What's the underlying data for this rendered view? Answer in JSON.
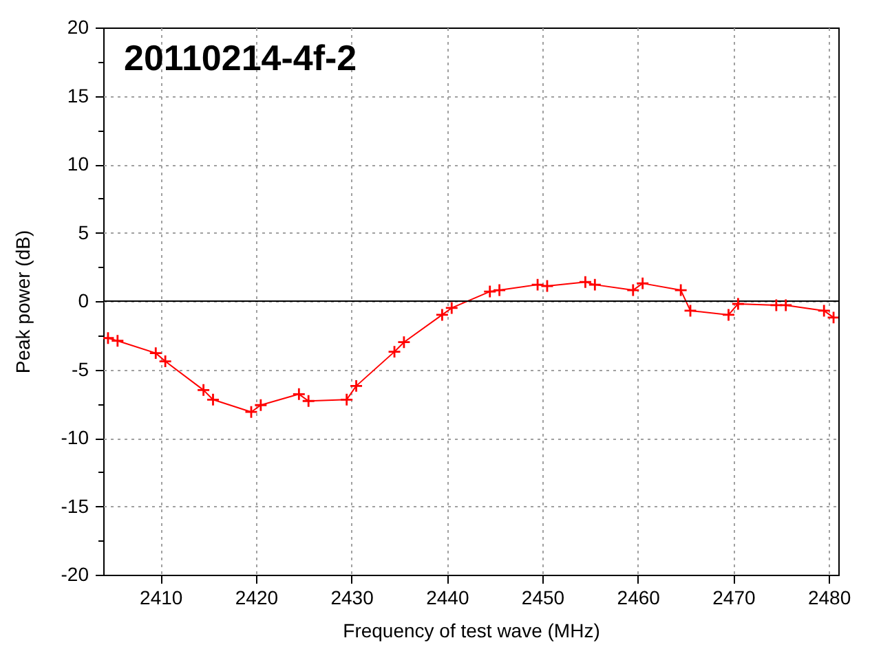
{
  "chart_data": {
    "type": "line",
    "title": "20110214-4f-2",
    "xlabel": "Frequency of test wave (MHz)",
    "ylabel": "Peak power (dB)",
    "x": [
      2404.5,
      2405.5,
      2409.5,
      2410.5,
      2414.5,
      2415.5,
      2419.5,
      2420.5,
      2424.5,
      2425.5,
      2429.5,
      2430.5,
      2434.5,
      2435.5,
      2439.5,
      2440.5,
      2444.5,
      2445.5,
      2449.5,
      2450.5,
      2454.5,
      2455.5,
      2459.5,
      2460.5,
      2464.5,
      2465.5,
      2469.5,
      2470.5,
      2474.5,
      2475.5,
      2479.5,
      2480.5
    ],
    "series": [
      {
        "color": "#ff0000",
        "values": [
          -2.7,
          -2.9,
          -3.8,
          -4.4,
          -6.5,
          -7.2,
          -8.1,
          -7.6,
          -6.8,
          -7.3,
          -7.2,
          -6.2,
          -3.7,
          -3.0,
          -1.0,
          -0.5,
          0.7,
          0.8,
          1.2,
          1.1,
          1.4,
          1.2,
          0.8,
          1.3,
          0.8,
          -0.7,
          -1.0,
          -0.2,
          -0.3,
          -0.3,
          -0.7,
          -1.2
        ]
      }
    ],
    "xlim": [
      2404,
      2481
    ],
    "xticks": [
      2410,
      2420,
      2430,
      2440,
      2450,
      2460,
      2470,
      2480
    ],
    "ylim": [
      -20,
      20
    ],
    "yticks": [
      -20,
      {
        "value": -17.5,
        "label": null
      },
      -15,
      {
        "value": -12.5,
        "label": null
      },
      -10,
      {
        "value": -7.5,
        "label": null
      },
      -5,
      {
        "value": -2.5,
        "label": null
      },
      0,
      {
        "value": 2.5,
        "label": null
      },
      5,
      {
        "value": 7.5,
        "label": null
      },
      10,
      {
        "value": 12.5,
        "label": null
      },
      15,
      {
        "value": 17.5,
        "label": null
      },
      20
    ],
    "ref_lines": [
      {
        "axis": "y",
        "value": 0,
        "color": "#000000"
      }
    ],
    "grid": true,
    "marker": "cross",
    "line_style": "solid"
  }
}
